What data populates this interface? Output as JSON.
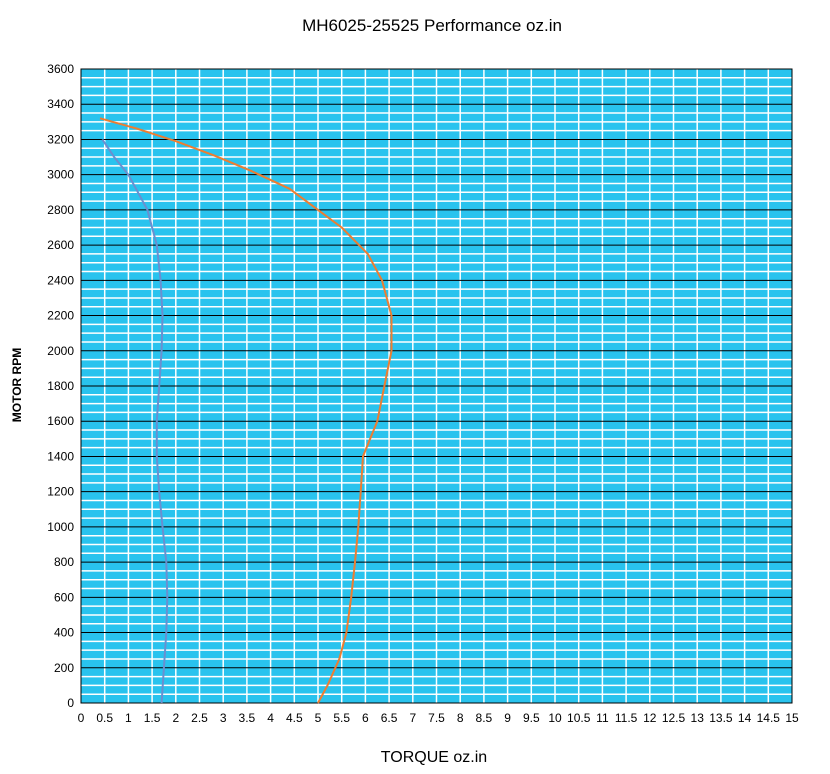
{
  "chart_data": {
    "type": "line",
    "title": "MH6025-25525  Performance oz.in",
    "xlabel": "TORQUE  oz.in",
    "ylabel": "MOTOR RPM",
    "xlim": [
      0,
      15
    ],
    "ylim": [
      0,
      3600
    ],
    "x_ticks": [
      "0",
      "0.5",
      "1",
      "1.5",
      "2",
      "2.5",
      "3",
      "3.5",
      "4",
      "4.5",
      "5",
      "5.5",
      "6",
      "6.5",
      "7",
      "7.5",
      "8",
      "8.5",
      "9",
      "9.5",
      "10",
      "10.5",
      "11",
      "11.5",
      "12",
      "12.5",
      "13",
      "13.5",
      "14",
      "14.5",
      "15"
    ],
    "y_ticks": [
      "0",
      "200",
      "400",
      "600",
      "800",
      "1000",
      "1200",
      "1400",
      "1600",
      "1800",
      "2000",
      "2200",
      "2400",
      "2600",
      "2800",
      "3000",
      "3200",
      "3400",
      "3600"
    ],
    "grid": true,
    "background_color": "#29c3ee",
    "grid_minor_color": "#ffffff",
    "grid_major_color": "#000000",
    "series": [
      {
        "color": "#ed7d31",
        "points": [
          [
            5.0,
            0
          ],
          [
            5.2,
            100
          ],
          [
            5.45,
            250
          ],
          [
            5.6,
            400
          ],
          [
            5.7,
            600
          ],
          [
            5.78,
            800
          ],
          [
            5.85,
            1000
          ],
          [
            5.9,
            1200
          ],
          [
            5.95,
            1400
          ],
          [
            6.25,
            1600
          ],
          [
            6.4,
            1800
          ],
          [
            6.55,
            2000
          ],
          [
            6.55,
            2200
          ],
          [
            6.35,
            2400
          ],
          [
            6.05,
            2550
          ],
          [
            5.5,
            2700
          ],
          [
            5.0,
            2800
          ],
          [
            4.4,
            2920
          ],
          [
            3.6,
            3020
          ],
          [
            2.8,
            3110
          ],
          [
            2.0,
            3190
          ],
          [
            1.2,
            3260
          ],
          [
            0.4,
            3320
          ]
        ]
      },
      {
        "color": "#6a8fd0",
        "points": [
          [
            1.7,
            0
          ],
          [
            1.75,
            200
          ],
          [
            1.8,
            400
          ],
          [
            1.82,
            600
          ],
          [
            1.8,
            800
          ],
          [
            1.72,
            1000
          ],
          [
            1.65,
            1200
          ],
          [
            1.6,
            1400
          ],
          [
            1.6,
            1600
          ],
          [
            1.65,
            1800
          ],
          [
            1.7,
            2000
          ],
          [
            1.72,
            2200
          ],
          [
            1.68,
            2400
          ],
          [
            1.6,
            2600
          ],
          [
            1.4,
            2800
          ],
          [
            1.0,
            3000
          ],
          [
            0.7,
            3100
          ],
          [
            0.45,
            3200
          ]
        ]
      }
    ]
  }
}
